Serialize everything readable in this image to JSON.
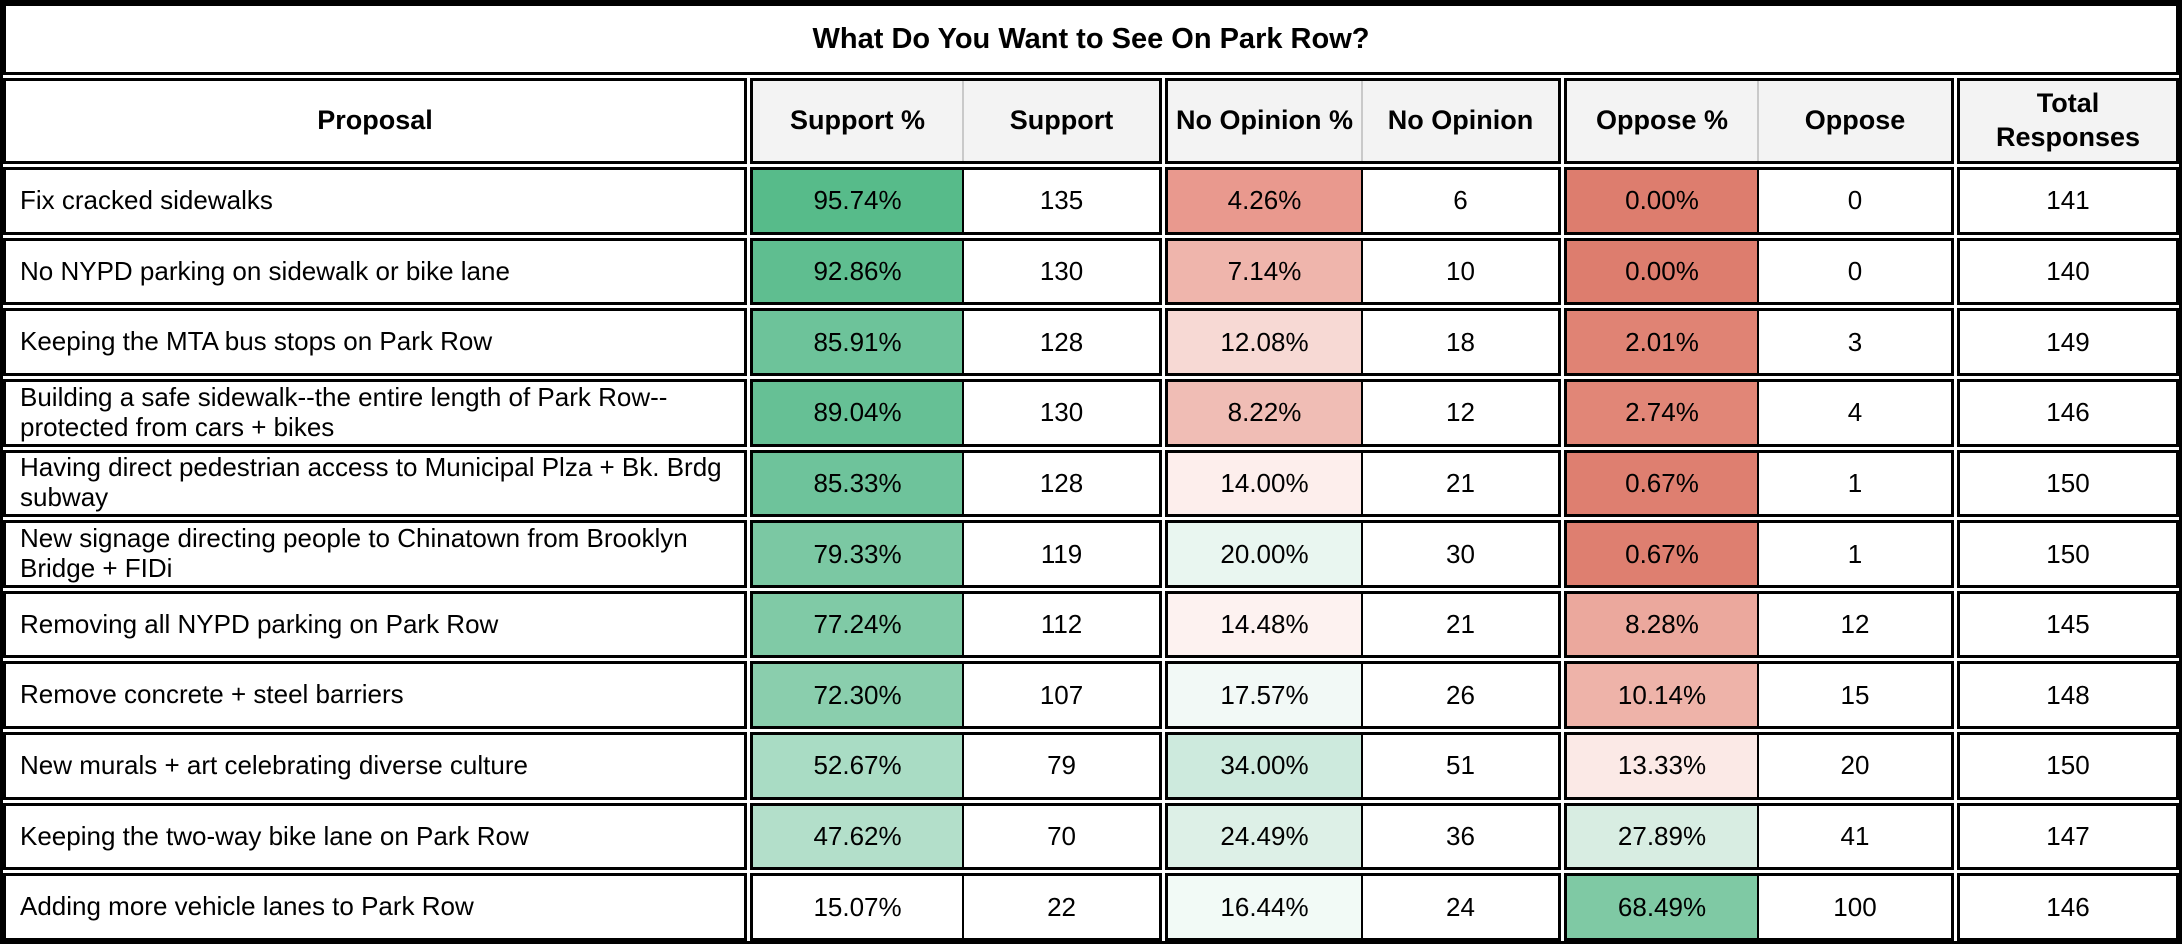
{
  "title": "What Do You Want to See On Park Row?",
  "header": {
    "columns": [
      "Proposal",
      "Support %",
      "Support",
      "No Opinion %",
      "No Opinion",
      "Oppose %",
      "Oppose",
      "Total Responses"
    ]
  },
  "colors": {
    "header_bg": "#f3f3f3",
    "border": "#000000",
    "scale_green_max": "#57bb8a",
    "scale_red_max": "#dd7d6e",
    "scale_mid": "#ffffff"
  },
  "rows": [
    {
      "proposal": "Fix cracked sidewalks",
      "support_pct": "95.74%",
      "support": "135",
      "no_opinion_pct": "4.26%",
      "no_opinion": "6",
      "oppose_pct": "0.00%",
      "oppose": "0",
      "total": "141",
      "support_pct_bg": "#57bb8a",
      "no_opinion_pct_bg": "#e9998e",
      "oppose_pct_bg": "#dd7d6e"
    },
    {
      "proposal": "No NYPD parking on sidewalk or bike lane",
      "support_pct": "92.86%",
      "support": "130",
      "no_opinion_pct": "7.14%",
      "no_opinion": "10",
      "oppose_pct": "0.00%",
      "oppose": "0",
      "total": "140",
      "support_pct_bg": "#5fbe90",
      "no_opinion_pct_bg": "#efb5ac",
      "oppose_pct_bg": "#dd7d6e"
    },
    {
      "proposal": "Keeping the MTA bus stops on Park Row",
      "support_pct": "85.91%",
      "support": "128",
      "no_opinion_pct": "12.08%",
      "no_opinion": "18",
      "oppose_pct": "2.01%",
      "oppose": "3",
      "total": "149",
      "support_pct_bg": "#6dc39a",
      "no_opinion_pct_bg": "#f7d9d4",
      "oppose_pct_bg": "#e08374"
    },
    {
      "proposal": "Building a safe sidewalk--the entire length of Park Row--protected from cars + bikes",
      "support_pct": "89.04%",
      "support": "130",
      "no_opinion_pct": "8.22%",
      "no_opinion": "12",
      "oppose_pct": "2.74%",
      "oppose": "4",
      "total": "146",
      "support_pct_bg": "#66c095",
      "no_opinion_pct_bg": "#f0bdb5",
      "oppose_pct_bg": "#e18677"
    },
    {
      "proposal": "Having direct pedestrian access to Municipal Plza + Bk. Brdg subway",
      "support_pct": "85.33%",
      "support": "128",
      "no_opinion_pct": "14.00%",
      "no_opinion": "21",
      "oppose_pct": "0.67%",
      "oppose": "1",
      "total": "150",
      "support_pct_bg": "#6ec39b",
      "no_opinion_pct_bg": "#fdeeec",
      "oppose_pct_bg": "#de7f70"
    },
    {
      "proposal": "New signage directing people to Chinatown from Brooklyn Bridge + FIDi",
      "support_pct": "79.33%",
      "support": "119",
      "no_opinion_pct": "20.00%",
      "no_opinion": "30",
      "oppose_pct": "0.67%",
      "oppose": "1",
      "total": "150",
      "support_pct_bg": "#7bc8a3",
      "no_opinion_pct_bg": "#e9f6f0",
      "oppose_pct_bg": "#de7f70"
    },
    {
      "proposal": "Removing all NYPD parking on Park Row",
      "support_pct": "77.24%",
      "support": "112",
      "no_opinion_pct": "14.48%",
      "no_opinion": "21",
      "oppose_pct": "8.28%",
      "oppose": "12",
      "total": "145",
      "support_pct_bg": "#80caa6",
      "no_opinion_pct_bg": "#fdf2f0",
      "oppose_pct_bg": "#eba89d"
    },
    {
      "proposal": "Remove concrete + steel barriers",
      "support_pct": "72.30%",
      "support": "107",
      "no_opinion_pct": "17.57%",
      "no_opinion": "26",
      "oppose_pct": "10.14%",
      "oppose": "15",
      "total": "148",
      "support_pct_bg": "#8acead",
      "no_opinion_pct_bg": "#f2f9f6",
      "oppose_pct_bg": "#eeb3a9"
    },
    {
      "proposal": "New murals + art celebrating diverse culture",
      "support_pct": "52.67%",
      "support": "79",
      "no_opinion_pct": "34.00%",
      "no_opinion": "51",
      "oppose_pct": "13.33%",
      "oppose": "20",
      "total": "150",
      "support_pct_bg": "#a9dcc4",
      "no_opinion_pct_bg": "#cdeadd",
      "oppose_pct_bg": "#fbe9e6"
    },
    {
      "proposal": "Keeping the two-way bike lane on Park Row",
      "support_pct": "47.62%",
      "support": "70",
      "no_opinion_pct": "24.49%",
      "no_opinion": "36",
      "oppose_pct": "27.89%",
      "oppose": "41",
      "total": "147",
      "support_pct_bg": "#b3dfca",
      "no_opinion_pct_bg": "#ddf0e7",
      "oppose_pct_bg": "#d8ede2"
    },
    {
      "proposal": "Adding more vehicle lanes to Park Row",
      "support_pct": "15.07%",
      "support": "22",
      "no_opinion_pct": "16.44%",
      "no_opinion": "24",
      "oppose_pct": "68.49%",
      "oppose": "100",
      "total": "146",
      "support_pct_bg": "#ffffff",
      "no_opinion_pct_bg": "#f2faf6",
      "oppose_pct_bg": "#7fc9a4"
    }
  ],
  "chart_data": {
    "type": "table",
    "title": "What Do You Want to See On Park Row?",
    "columns": [
      "Proposal",
      "Support %",
      "Support",
      "No Opinion %",
      "No Opinion",
      "Oppose %",
      "Oppose",
      "Total Responses"
    ],
    "rows": [
      [
        "Fix cracked sidewalks",
        95.74,
        135,
        4.26,
        6,
        0.0,
        0,
        141
      ],
      [
        "No NYPD parking on sidewalk or bike lane",
        92.86,
        130,
        7.14,
        10,
        0.0,
        0,
        140
      ],
      [
        "Keeping the MTA bus stops on Park Row",
        85.91,
        128,
        12.08,
        18,
        2.01,
        3,
        149
      ],
      [
        "Building a safe sidewalk--the entire length of Park Row--protected from cars + bikes",
        89.04,
        130,
        8.22,
        12,
        2.74,
        4,
        146
      ],
      [
        "Having direct pedestrian access to Municipal Plza + Bk. Brdg subway",
        85.33,
        128,
        14.0,
        21,
        0.67,
        1,
        150
      ],
      [
        "New signage directing people to Chinatown from Brooklyn Bridge + FIDi",
        79.33,
        119,
        20.0,
        30,
        0.67,
        1,
        150
      ],
      [
        "Removing all NYPD parking on Park Row",
        77.24,
        112,
        14.48,
        21,
        8.28,
        12,
        145
      ],
      [
        "Remove concrete + steel barriers",
        72.3,
        107,
        17.57,
        26,
        10.14,
        15,
        148
      ],
      [
        "New murals + art celebrating diverse culture",
        52.67,
        79,
        34.0,
        51,
        13.33,
        20,
        150
      ],
      [
        "Keeping the two-way bike lane on Park Row",
        47.62,
        70,
        24.49,
        36,
        27.89,
        41,
        147
      ],
      [
        "Adding more vehicle lanes to Park Row",
        15.07,
        22,
        16.44,
        24,
        68.49,
        100,
        146
      ]
    ],
    "notes": "Percent cells use a red-white-green conditional-formatting color scale"
  }
}
